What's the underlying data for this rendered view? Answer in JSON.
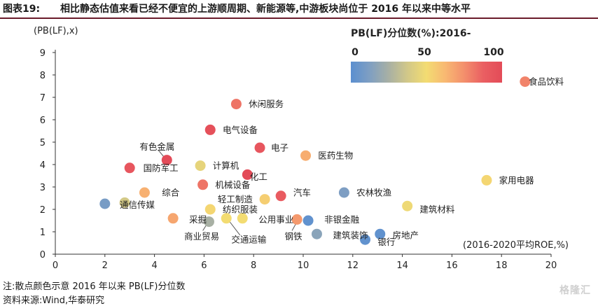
{
  "title": {
    "label": "图表19:",
    "text": "相比静态估值来看已经不便宜的上游顺周期、新能源等,中游板块尚位于 2016 年以来中等水平"
  },
  "notes": {
    "note": "注:散点颜色示意 2016 年以来 PB(LF)分位数",
    "source": "资料来源:Wind,华泰研究"
  },
  "watermark": "格隆汇",
  "colors": {
    "scale": [
      "#5b8fd0",
      "#7f9fc2",
      "#a8b0a4",
      "#d2c888",
      "#f3dc72",
      "#f8b872",
      "#f38f6c",
      "#ea5f62",
      "#e34b58"
    ]
  },
  "chart_data": {
    "type": "scatter",
    "ylabel": "(PB(LF),x)",
    "xlabel": "(2016-2020平均ROE,%)",
    "xlim": [
      0,
      20
    ],
    "ylim": [
      0,
      9
    ],
    "x_ticks": [
      0,
      2,
      4,
      6,
      8,
      10,
      12,
      14,
      16,
      18,
      20
    ],
    "y_ticks": [
      0,
      1,
      2,
      3,
      4,
      5,
      6,
      7,
      8,
      9
    ],
    "grid": false,
    "colorbar": {
      "title": "PB(LF)分位数(%):2016-",
      "ticks": [
        0,
        50,
        100
      ],
      "range": [
        0,
        100
      ],
      "placement": "top-right"
    },
    "points": [
      {
        "name": "食品饮料",
        "x": 18.95,
        "y": 7.7,
        "pct": 78
      },
      {
        "name": "休闲服务",
        "x": 7.3,
        "y": 6.7,
        "pct": 82
      },
      {
        "name": "电气设备",
        "x": 6.25,
        "y": 5.55,
        "pct": 97
      },
      {
        "name": "电子",
        "x": 8.25,
        "y": 4.75,
        "pct": 93
      },
      {
        "name": "医药生物",
        "x": 10.1,
        "y": 4.4,
        "pct": 66
      },
      {
        "name": "有色金属",
        "x": 4.5,
        "y": 4.2,
        "pct": 100
      },
      {
        "name": "国防军工",
        "x": 3.0,
        "y": 3.85,
        "pct": 93
      },
      {
        "name": "计算机",
        "x": 5.85,
        "y": 3.95,
        "pct": 45
      },
      {
        "name": "化工",
        "x": 7.75,
        "y": 3.55,
        "pct": 100
      },
      {
        "name": "机械设备",
        "x": 5.95,
        "y": 3.1,
        "pct": 82
      },
      {
        "name": "综合",
        "x": 3.6,
        "y": 2.75,
        "pct": 65
      },
      {
        "name": "汽车",
        "x": 9.1,
        "y": 2.6,
        "pct": 90
      },
      {
        "name": "轻工制造",
        "x": 8.45,
        "y": 2.45,
        "pct": 55
      },
      {
        "name": "农林牧渔",
        "x": 11.65,
        "y": 2.75,
        "pct": 12
      },
      {
        "name": "家用电器",
        "x": 17.4,
        "y": 3.3,
        "pct": 52
      },
      {
        "name": "通信传媒",
        "x": 2.0,
        "y": 2.25,
        "pct": 10
      },
      {
        "name": "通信传媒",
        "x": 2.8,
        "y": 2.3,
        "pct": 38
      },
      {
        "name": "纺织服装",
        "x": 6.25,
        "y": 2.0,
        "pct": 52
      },
      {
        "name": "建筑材料",
        "x": 14.2,
        "y": 2.15,
        "pct": 48
      },
      {
        "name": "采掘",
        "x": 4.75,
        "y": 1.6,
        "pct": 68
      },
      {
        "name": "商业贸易",
        "x": 6.2,
        "y": 1.45,
        "pct": 25
      },
      {
        "name": "交通运输",
        "x": 6.9,
        "y": 1.6,
        "pct": 50
      },
      {
        "name": "公用事业",
        "x": 7.55,
        "y": 1.6,
        "pct": 50
      },
      {
        "name": "钢铁",
        "x": 9.75,
        "y": 1.55,
        "pct": 72
      },
      {
        "name": "非银金融",
        "x": 10.2,
        "y": 1.5,
        "pct": 2
      },
      {
        "name": "建筑装饰",
        "x": 10.55,
        "y": 0.9,
        "pct": 16
      },
      {
        "name": "房地产",
        "x": 13.1,
        "y": 0.9,
        "pct": 2
      },
      {
        "name": "银行",
        "x": 12.5,
        "y": 0.65,
        "pct": 2
      }
    ],
    "labels": [
      {
        "text": "食品饮料",
        "x": 19.1,
        "y": 7.7,
        "anchor": "start"
      },
      {
        "text": "休闲服务",
        "x": 7.8,
        "y": 6.7,
        "anchor": "start"
      },
      {
        "text": "电气设备",
        "x": 6.75,
        "y": 5.55,
        "anchor": "start"
      },
      {
        "text": "电子",
        "x": 8.7,
        "y": 4.75,
        "anchor": "start"
      },
      {
        "text": "医药生物",
        "x": 10.6,
        "y": 4.4,
        "anchor": "start"
      },
      {
        "text": "有色金属",
        "x": 3.4,
        "y": 4.8,
        "anchor": "start"
      },
      {
        "text": "国防军工",
        "x": 3.55,
        "y": 3.85,
        "anchor": "start"
      },
      {
        "text": "计算机",
        "x": 6.35,
        "y": 3.95,
        "anchor": "start"
      },
      {
        "text": "化工",
        "x": 7.85,
        "y": 3.45,
        "anchor": "start"
      },
      {
        "text": "机械设备",
        "x": 6.45,
        "y": 3.1,
        "anchor": "start"
      },
      {
        "text": "综合",
        "x": 4.3,
        "y": 2.75,
        "anchor": "start"
      },
      {
        "text": "汽车",
        "x": 9.6,
        "y": 2.75,
        "anchor": "start"
      },
      {
        "text": "轻工制造",
        "x": 6.55,
        "y": 2.45,
        "anchor": "start"
      },
      {
        "text": "农林牧渔",
        "x": 12.15,
        "y": 2.75,
        "anchor": "start"
      },
      {
        "text": "家用电器",
        "x": 17.9,
        "y": 3.3,
        "anchor": "start"
      },
      {
        "text": "通信传媒",
        "x": 2.6,
        "y": 2.2,
        "anchor": "start"
      },
      {
        "text": "纺织服装",
        "x": 6.75,
        "y": 2.0,
        "anchor": "start"
      },
      {
        "text": "建筑材料",
        "x": 14.7,
        "y": 2.0,
        "anchor": "start"
      },
      {
        "text": "采掘",
        "x": 5.4,
        "y": 1.55,
        "anchor": "start"
      },
      {
        "text": "商业贸易",
        "x": 5.2,
        "y": 0.8,
        "anchor": "start"
      },
      {
        "text": "交通运输",
        "x": 7.1,
        "y": 0.65,
        "anchor": "start"
      },
      {
        "text": "公用事业",
        "x": 8.2,
        "y": 1.55,
        "anchor": "start"
      },
      {
        "text": "钢铁",
        "x": 9.25,
        "y": 0.8,
        "anchor": "start"
      },
      {
        "text": "非银金融",
        "x": 10.85,
        "y": 1.55,
        "anchor": "start"
      },
      {
        "text": "建筑装饰",
        "x": 11.2,
        "y": 0.85,
        "anchor": "start"
      },
      {
        "text": "房地产",
        "x": 13.6,
        "y": 0.85,
        "anchor": "start"
      },
      {
        "text": "银行",
        "x": 13.0,
        "y": 0.55,
        "anchor": "start"
      }
    ],
    "leaders": [
      {
        "from": [
          4.15,
          4.65
        ],
        "to": [
          4.45,
          4.25
        ]
      },
      {
        "from": [
          5.95,
          1.05
        ],
        "to": [
          6.15,
          1.4
        ]
      },
      {
        "from": [
          7.45,
          0.85
        ],
        "to": [
          7.0,
          1.5
        ]
      },
      {
        "from": [
          9.55,
          1.05
        ],
        "to": [
          9.75,
          1.45
        ]
      }
    ]
  }
}
